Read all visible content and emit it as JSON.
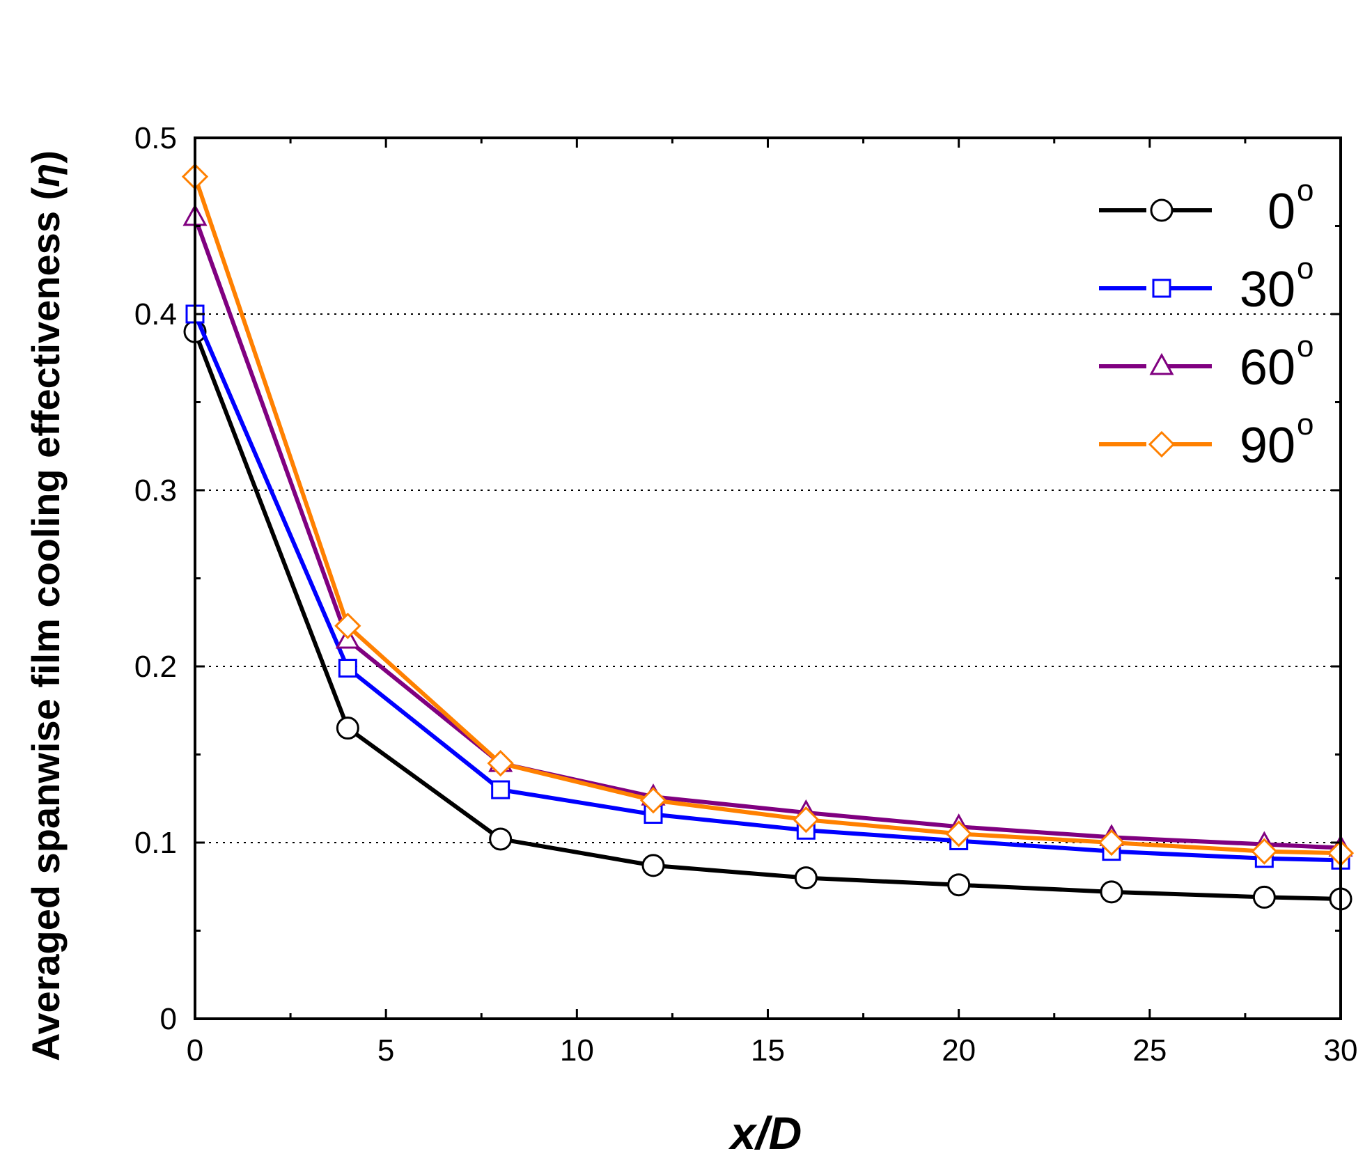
{
  "chart_data": {
    "type": "line",
    "title": "",
    "xlabel": "x/D",
    "ylabel": "Averaged spanwise film cooling effectiveness",
    "ylabel_symbol": "η",
    "xlim": [
      0,
      30
    ],
    "ylim": [
      0,
      0.5
    ],
    "x_ticks": [
      "0",
      "5",
      "10",
      "15",
      "20",
      "25",
      "30"
    ],
    "y_ticks": [
      "0",
      "0.1",
      "0.2",
      "0.3",
      "0.4",
      "0.5"
    ],
    "grid": "horizontal dotted",
    "legend_position": "top-right",
    "x": [
      0,
      4,
      8,
      12,
      16,
      20,
      24,
      28,
      30
    ],
    "series": [
      {
        "name": "0",
        "name_sup": "o",
        "color": "#000000",
        "marker": "circle",
        "values": [
          0.39,
          0.165,
          0.102,
          0.087,
          0.08,
          0.076,
          0.072,
          0.069,
          0.068
        ]
      },
      {
        "name": "30",
        "name_sup": "o",
        "color": "#0000ff",
        "marker": "square",
        "values": [
          0.4,
          0.199,
          0.13,
          0.116,
          0.107,
          0.101,
          0.095,
          0.091,
          0.09
        ]
      },
      {
        "name": "60",
        "name_sup": "o",
        "color": "#800080",
        "marker": "triangle",
        "values": [
          0.455,
          0.215,
          0.145,
          0.126,
          0.117,
          0.109,
          0.103,
          0.099,
          0.097
        ]
      },
      {
        "name": "90",
        "name_sup": "o",
        "color": "#ff8000",
        "marker": "diamond",
        "values": [
          0.478,
          0.223,
          0.145,
          0.124,
          0.113,
          0.105,
          0.1,
          0.095,
          0.094
        ]
      }
    ]
  }
}
